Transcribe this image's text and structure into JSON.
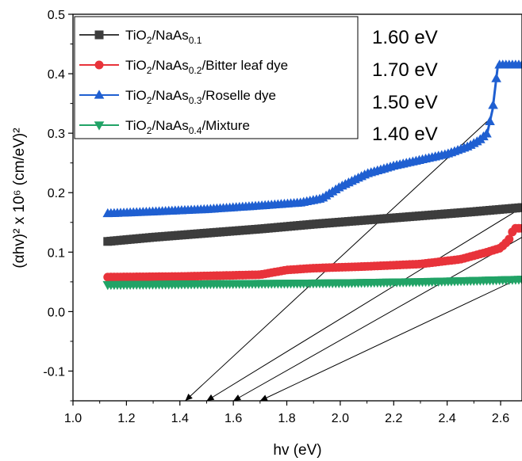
{
  "chart_data": {
    "type": "scatter",
    "xlabel": "hv (eV)",
    "ylabel": "(αhv)² x 10⁶ (cm/eV)²",
    "xlim": [
      1.0,
      2.68
    ],
    "ylim": [
      -0.15,
      0.5
    ],
    "x_ticks": [
      1.0,
      1.2,
      1.4,
      1.6,
      1.8,
      2.0,
      2.2,
      2.4,
      2.6
    ],
    "y_ticks": [
      -0.1,
      0.0,
      0.1,
      0.2,
      0.3,
      0.4,
      0.5
    ],
    "grid": false,
    "legend_position": "top-left",
    "series": [
      {
        "name": "TiO2/NaAs0.1",
        "legend": {
          "base": "TiO",
          "sub1": "2",
          "mid": "/NaAs",
          "sub2": "0.1",
          "rest": ""
        },
        "color": "#3d3d3d",
        "marker": "square",
        "x": [
          1.13,
          1.3,
          1.5,
          1.7,
          1.9,
          2.1,
          2.3,
          2.5,
          2.68
        ],
        "y": [
          0.118,
          0.125,
          0.132,
          0.139,
          0.147,
          0.154,
          0.161,
          0.168,
          0.175
        ]
      },
      {
        "name": "TiO2/NaAs0.2/Bitter leaf dye",
        "legend": {
          "base": "TiO",
          "sub1": "2",
          "mid": "/NaAs",
          "sub2": "0.2",
          "rest": "/Bitter leaf dye"
        },
        "color": "#e8333a",
        "marker": "circle",
        "x": [
          1.13,
          1.4,
          1.7,
          1.8,
          1.9,
          2.1,
          2.3,
          2.45,
          2.55,
          2.6,
          2.63,
          2.65,
          2.68
        ],
        "y": [
          0.058,
          0.059,
          0.062,
          0.07,
          0.073,
          0.076,
          0.08,
          0.088,
          0.1,
          0.107,
          0.12,
          0.14,
          0.14
        ]
      },
      {
        "name": "TiO2/NaAs0.3/Roselle dye",
        "legend": {
          "base": "TiO",
          "sub1": "2",
          "mid": "/NaAs",
          "sub2": "0.3",
          "rest": "/Roselle dye"
        },
        "color": "#1f5fd1",
        "marker": "triangle-up",
        "x": [
          1.13,
          1.3,
          1.5,
          1.7,
          1.85,
          1.93,
          2.0,
          2.1,
          2.2,
          2.3,
          2.4,
          2.48,
          2.52,
          2.55,
          2.57,
          2.59,
          2.62,
          2.68
        ],
        "y": [
          0.165,
          0.168,
          0.172,
          0.178,
          0.183,
          0.19,
          0.21,
          0.232,
          0.245,
          0.255,
          0.265,
          0.278,
          0.288,
          0.3,
          0.34,
          0.415,
          0.415,
          0.415
        ]
      },
      {
        "name": "TiO2/NaAs0.4/Mixture",
        "legend": {
          "base": "TiO",
          "sub1": "2",
          "mid": "/NaAs",
          "sub2": "0.4",
          "rest": "/Mixture"
        },
        "color": "#21a366",
        "marker": "triangle-down",
        "x": [
          1.13,
          1.4,
          1.7,
          2.0,
          2.3,
          2.5,
          2.68
        ],
        "y": [
          0.045,
          0.046,
          0.047,
          0.048,
          0.05,
          0.052,
          0.054
        ]
      }
    ],
    "tangent_lines": [
      {
        "from": [
          2.55,
          0.32
        ],
        "to": [
          1.42,
          -0.15
        ]
      },
      {
        "from": [
          2.68,
          0.175
        ],
        "to": [
          1.5,
          -0.15
        ]
      },
      {
        "from": [
          2.68,
          0.125
        ],
        "to": [
          1.6,
          -0.15
        ]
      },
      {
        "from": [
          2.68,
          0.058
        ],
        "to": [
          1.7,
          -0.15
        ]
      }
    ],
    "annotations": [
      "1.60 eV",
      "1.70 eV",
      "1.50 eV",
      "1.40 eV"
    ]
  }
}
